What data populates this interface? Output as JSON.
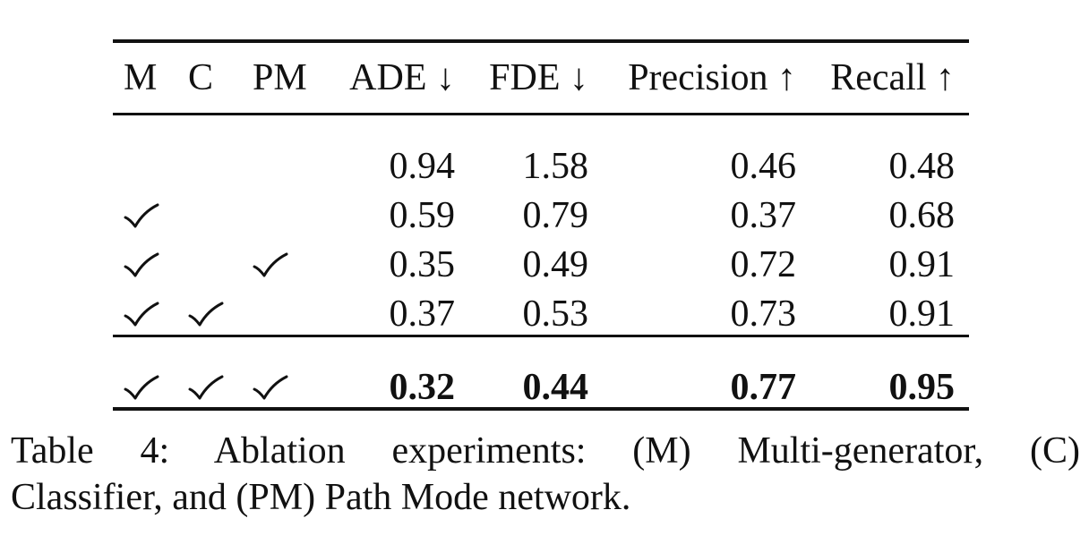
{
  "table": {
    "headers": {
      "m": "M",
      "c": "C",
      "pm": "PM",
      "ade": "ADE ↓",
      "fde": "FDE ↓",
      "precision": "Precision ↑",
      "recall": "Recall ↑"
    },
    "rows": [
      {
        "m": false,
        "c": false,
        "pm": false,
        "ade": "0.94",
        "fde": "1.58",
        "precision": "0.46",
        "recall": "0.48",
        "bold": false
      },
      {
        "m": true,
        "c": false,
        "pm": false,
        "ade": "0.59",
        "fde": "0.79",
        "precision": "0.37",
        "recall": "0.68",
        "bold": false
      },
      {
        "m": true,
        "c": false,
        "pm": true,
        "ade": "0.35",
        "fde": "0.49",
        "precision": "0.72",
        "recall": "0.91",
        "bold": false
      },
      {
        "m": true,
        "c": true,
        "pm": false,
        "ade": "0.37",
        "fde": "0.53",
        "precision": "0.73",
        "recall": "0.91",
        "bold": false
      },
      {
        "m": true,
        "c": true,
        "pm": true,
        "ade": "0.32",
        "fde": "0.44",
        "precision": "0.77",
        "recall": "0.95",
        "bold": true
      }
    ],
    "check_icon": "checkmark-icon"
  },
  "caption": {
    "line1": "Table 4: Ablation experiments: (M) Multi-generator, (C)",
    "line2": "Classifier, and (PM) Path Mode network."
  }
}
